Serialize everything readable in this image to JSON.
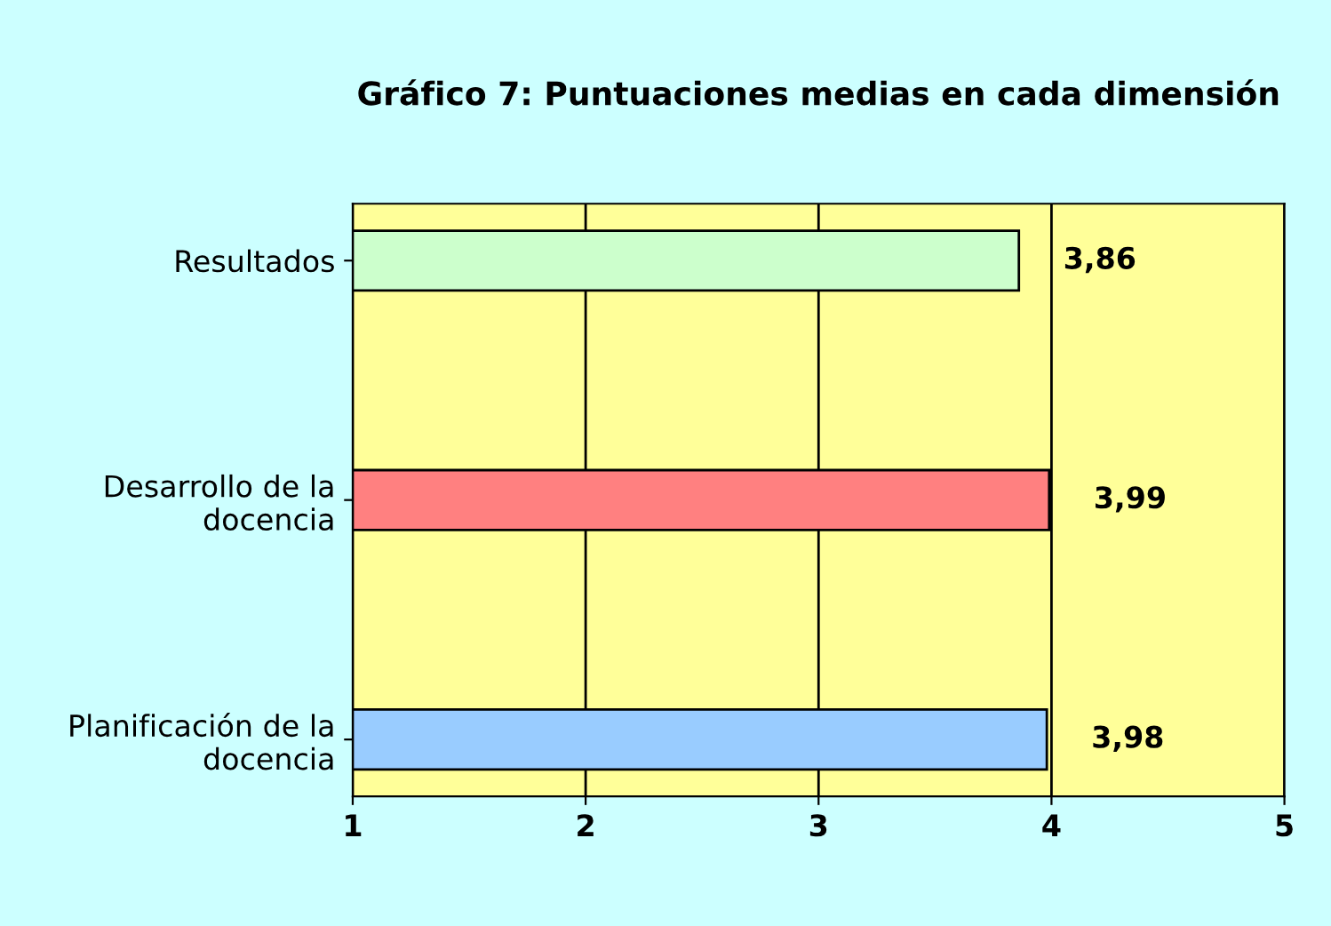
{
  "chart_data": {
    "type": "bar",
    "orientation": "horizontal",
    "title": "Gráfico 7: Puntuaciones medias en cada dimensión",
    "categories": [
      "Resultados",
      "Desarrollo de la\ndocencia",
      "Planificación de la\ndocencia"
    ],
    "values": [
      3.86,
      3.99,
      3.98
    ],
    "colors": [
      "#ccffcc",
      "#ff8080",
      "#99ccff"
    ],
    "value_labels": [
      "3,86",
      "3,99",
      "3,98"
    ],
    "xlim": [
      1,
      5
    ],
    "xticks": [
      1,
      2,
      3,
      4,
      5
    ],
    "grid": "x",
    "legend": false
  }
}
